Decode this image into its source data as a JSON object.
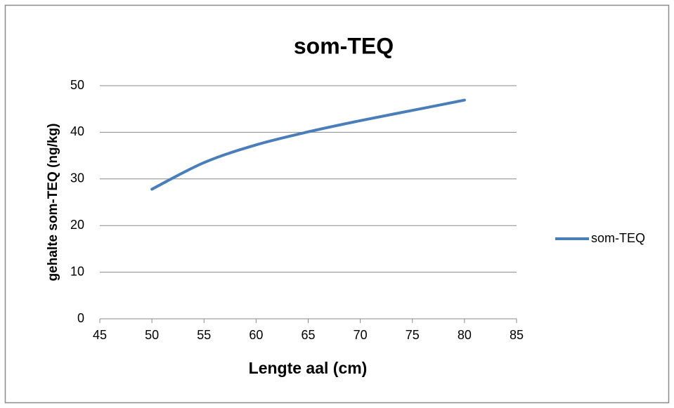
{
  "chart_data": {
    "type": "line",
    "title": "som-TEQ",
    "x_label": "Lengte aal (cm)",
    "y_label": "gehalte som-TEQ (ng/kg)",
    "x": [
      50,
      55,
      60,
      65,
      70,
      75,
      80
    ],
    "series": [
      {
        "name": "som-TEQ",
        "color": "#4a7ebb",
        "values": [
          27.8,
          33.5,
          37.3,
          40.1,
          42.5,
          44.7,
          46.9
        ]
      }
    ],
    "xlim": [
      45,
      85
    ],
    "xticks": [
      45,
      50,
      55,
      60,
      65,
      70,
      75,
      80,
      85
    ],
    "ylim": [
      0,
      50
    ],
    "yticks": [
      0,
      10,
      20,
      30,
      40,
      50
    ],
    "grid": true,
    "legend": "right"
  }
}
